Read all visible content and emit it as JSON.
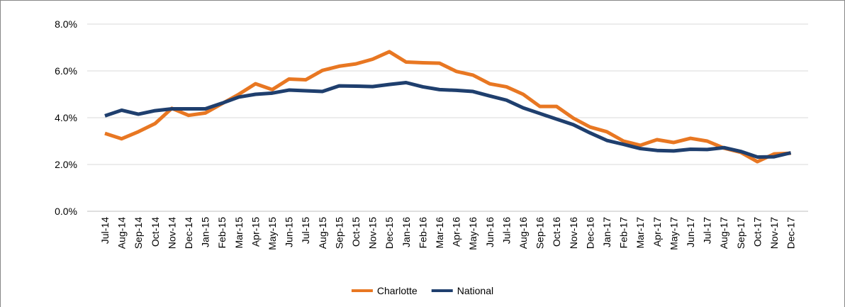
{
  "chart_data": {
    "type": "line",
    "categories": [
      "Jul-14",
      "Aug-14",
      "Sep-14",
      "Oct-14",
      "Nov-14",
      "Dec-14",
      "Jan-15",
      "Feb-15",
      "Mar-15",
      "Apr-15",
      "May-15",
      "Jun-15",
      "Jul-15",
      "Aug-15",
      "Sep-15",
      "Oct-15",
      "Nov-15",
      "Dec-15",
      "Jan-16",
      "Feb-16",
      "Mar-16",
      "Apr-16",
      "May-16",
      "Jun-16",
      "Jul-16",
      "Aug-16",
      "Sep-16",
      "Oct-16",
      "Nov-16",
      "Dec-16",
      "Jan-17",
      "Feb-17",
      "Mar-17",
      "Apr-17",
      "May-17",
      "Jun-17",
      "Jul-17",
      "Aug-17",
      "Sep-17",
      "Oct-17",
      "Nov-17",
      "Dec-17"
    ],
    "series": [
      {
        "name": "Charlotte",
        "color": "#e87722",
        "values": [
          3.33,
          3.1,
          3.4,
          3.75,
          4.4,
          4.1,
          4.2,
          4.6,
          5.0,
          5.45,
          5.2,
          5.65,
          5.62,
          6.02,
          6.2,
          6.3,
          6.5,
          6.82,
          6.38,
          6.35,
          6.33,
          5.98,
          5.82,
          5.45,
          5.32,
          5.0,
          4.48,
          4.48,
          3.98,
          3.6,
          3.4,
          3.0,
          2.82,
          3.06,
          2.94,
          3.12,
          3.0,
          2.7,
          2.52,
          2.12,
          2.45,
          2.48
        ]
      },
      {
        "name": "National",
        "color": "#1f3f6e",
        "values": [
          4.08,
          4.32,
          4.15,
          4.3,
          4.38,
          4.38,
          4.38,
          4.62,
          4.88,
          5.0,
          5.05,
          5.18,
          5.15,
          5.12,
          5.36,
          5.35,
          5.33,
          5.42,
          5.5,
          5.32,
          5.2,
          5.17,
          5.12,
          4.93,
          4.75,
          4.42,
          4.18,
          3.94,
          3.7,
          3.35,
          3.03,
          2.86,
          2.68,
          2.6,
          2.58,
          2.65,
          2.64,
          2.72,
          2.56,
          2.32,
          2.33,
          2.5
        ]
      }
    ],
    "ylim": [
      0,
      8
    ],
    "yticks": [
      {
        "value": 0,
        "label": "0.0%"
      },
      {
        "value": 2,
        "label": "2.0%"
      },
      {
        "value": 4,
        "label": "4.0%"
      },
      {
        "value": 6,
        "label": "6.0%"
      },
      {
        "value": 8,
        "label": "8.0%"
      }
    ],
    "grid": true,
    "legend": "bottom"
  }
}
